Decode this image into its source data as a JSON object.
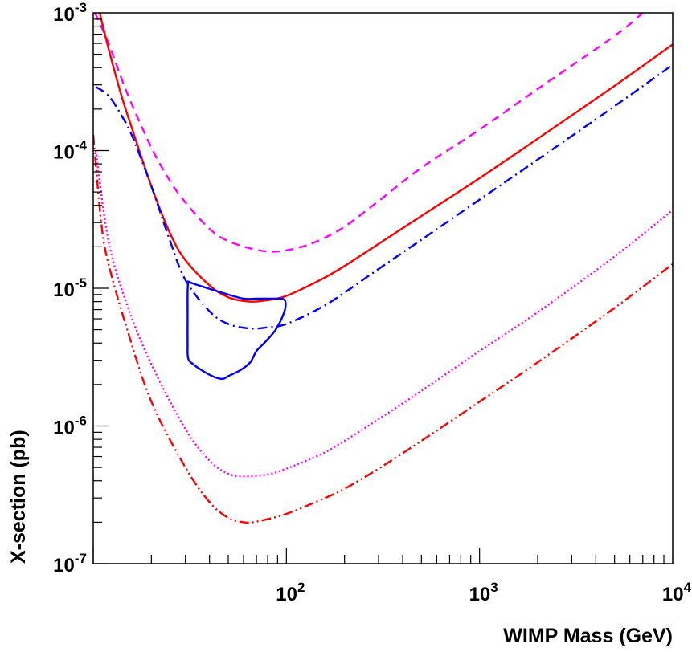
{
  "chart_data": {
    "type": "line",
    "title": "",
    "xlabel": "WIMP Mass (GeV)",
    "ylabel": "X-section (pb)",
    "x_scale": "log",
    "y_scale": "log",
    "xlim": [
      10,
      10000
    ],
    "ylim": [
      1e-07,
      0.001
    ],
    "grid": false,
    "legend": "none",
    "x_ticks": [
      {
        "value": 100,
        "base": "10",
        "exp": "2"
      },
      {
        "value": 1000,
        "base": "10",
        "exp": "3"
      },
      {
        "value": 10000,
        "base": "10",
        "exp": "4"
      }
    ],
    "y_ticks": [
      {
        "value": 0.001,
        "base": "10",
        "exp": "-3"
      },
      {
        "value": 0.0001,
        "base": "10",
        "exp": "-4"
      },
      {
        "value": 1e-05,
        "base": "10",
        "exp": "-5"
      },
      {
        "value": 1e-06,
        "base": "10",
        "exp": "-6"
      },
      {
        "value": 1e-07,
        "base": "10",
        "exp": "-7"
      }
    ],
    "series": [
      {
        "color": "#ff00ff",
        "style": "dashed",
        "points": [
          [
            10.2,
            0.001
          ],
          [
            12,
            0.0006
          ],
          [
            15,
            0.00026
          ],
          [
            20,
            0.000105
          ],
          [
            25,
            6e-05
          ],
          [
            30,
            4.2e-05
          ],
          [
            40,
            2.7e-05
          ],
          [
            50,
            2.2e-05
          ],
          [
            70,
            1.9e-05
          ],
          [
            90,
            1.85e-05
          ],
          [
            120,
            2e-05
          ],
          [
            150,
            2.25e-05
          ],
          [
            200,
            2.8e-05
          ],
          [
            300,
            4.3e-05
          ],
          [
            500,
            7.5e-05
          ],
          [
            1000,
            0.000142
          ],
          [
            2000,
            0.00028
          ],
          [
            5000,
            0.00068
          ],
          [
            7000,
            0.001
          ]
        ]
      },
      {
        "color": "#ff0000",
        "style": "solid",
        "points": [
          [
            10.8,
            0.001
          ],
          [
            12,
            0.00055
          ],
          [
            14,
            0.00025
          ],
          [
            16,
            0.00014
          ],
          [
            20,
            5.5e-05
          ],
          [
            25,
            2.5e-05
          ],
          [
            30,
            1.6e-05
          ],
          [
            40,
            1.05e-05
          ],
          [
            50,
            8.6e-06
          ],
          [
            65,
            8e-06
          ],
          [
            80,
            8.2e-06
          ],
          [
            100,
            8.8e-06
          ],
          [
            150,
            1.15e-05
          ],
          [
            200,
            1.45e-05
          ],
          [
            300,
            2.1e-05
          ],
          [
            500,
            3.35e-05
          ],
          [
            1000,
            6.3e-05
          ],
          [
            2000,
            0.000122
          ],
          [
            5000,
            0.000295
          ],
          [
            10000,
            0.00059
          ]
        ]
      },
      {
        "color": "#0000ff",
        "style": "dashdot",
        "points": [
          [
            10.3,
            0.00029
          ],
          [
            12,
            0.00025
          ],
          [
            14,
            0.00018
          ],
          [
            16,
            0.000125
          ],
          [
            20,
            5.5e-05
          ],
          [
            25,
            2.2e-05
          ],
          [
            30,
            1.15e-05
          ],
          [
            40,
            6.8e-06
          ],
          [
            50,
            5.5e-06
          ],
          [
            65,
            5.1e-06
          ],
          [
            80,
            5.2e-06
          ],
          [
            100,
            5.5e-06
          ],
          [
            150,
            7.2e-06
          ],
          [
            200,
            9.3e-06
          ],
          [
            300,
            1.38e-05
          ],
          [
            500,
            2.25e-05
          ],
          [
            1000,
            4.4e-05
          ],
          [
            2000,
            8.6e-05
          ],
          [
            5000,
            0.00021
          ],
          [
            10000,
            0.00042
          ]
        ]
      },
      {
        "color": "#ff00ff",
        "style": "dotted",
        "points": [
          [
            10.3,
            0.0001
          ],
          [
            12,
            2.2e-05
          ],
          [
            15,
            7.5e-06
          ],
          [
            20,
            2.8e-06
          ],
          [
            30,
            9.5e-07
          ],
          [
            40,
            5.6e-07
          ],
          [
            50,
            4.5e-07
          ],
          [
            60,
            4.3e-07
          ],
          [
            80,
            4.45e-07
          ],
          [
            100,
            4.9e-07
          ],
          [
            150,
            6.2e-07
          ],
          [
            200,
            7.8e-07
          ],
          [
            300,
            1.12e-06
          ],
          [
            500,
            1.8e-06
          ],
          [
            1000,
            3.5e-06
          ],
          [
            2000,
            6.7e-06
          ],
          [
            5000,
            1.7e-05
          ],
          [
            10000,
            3.7e-05
          ]
        ]
      },
      {
        "color": "#ff0000",
        "style": "dashdotdot",
        "points": [
          [
            10,
            0.00013
          ],
          [
            11,
            3e-05
          ],
          [
            12,
            1.5e-05
          ],
          [
            15,
            5e-06
          ],
          [
            20,
            1.5e-06
          ],
          [
            30,
            5e-07
          ],
          [
            40,
            2.8e-07
          ],
          [
            50,
            2.15e-07
          ],
          [
            60,
            2e-07
          ],
          [
            70,
            2.02e-07
          ],
          [
            100,
            2.3e-07
          ],
          [
            150,
            2.9e-07
          ],
          [
            200,
            3.5e-07
          ],
          [
            300,
            4.9e-07
          ],
          [
            500,
            7.8e-07
          ],
          [
            1000,
            1.5e-06
          ],
          [
            2000,
            2.9e-06
          ],
          [
            5000,
            7.2e-06
          ],
          [
            10000,
            1.5e-05
          ]
        ]
      },
      {
        "color": "#0000ff",
        "style": "solid",
        "closed": true,
        "points": [
          [
            31,
            1.12e-05
          ],
          [
            33,
            1.08e-05
          ],
          [
            40,
            9.9e-06
          ],
          [
            50,
            9e-06
          ],
          [
            60,
            8.4e-06
          ],
          [
            70,
            8.4e-06
          ],
          [
            85,
            8.4e-06
          ],
          [
            95,
            8.4e-06
          ],
          [
            99,
            7.9e-06
          ],
          [
            97,
            6.6e-06
          ],
          [
            88,
            5e-06
          ],
          [
            78,
            4.1e-06
          ],
          [
            70,
            3.5e-06
          ],
          [
            65,
            2.9e-06
          ],
          [
            58,
            2.55e-06
          ],
          [
            50,
            2.3e-06
          ],
          [
            47,
            2.2e-06
          ],
          [
            43,
            2.25e-06
          ],
          [
            38,
            2.45e-06
          ],
          [
            33,
            2.8e-06
          ],
          [
            31,
            3.1e-06
          ],
          [
            30.8,
            4e-06
          ],
          [
            30.8,
            6.5e-06
          ],
          [
            30.8,
            9.5e-06
          ],
          [
            31,
            1.12e-05
          ]
        ]
      }
    ]
  }
}
